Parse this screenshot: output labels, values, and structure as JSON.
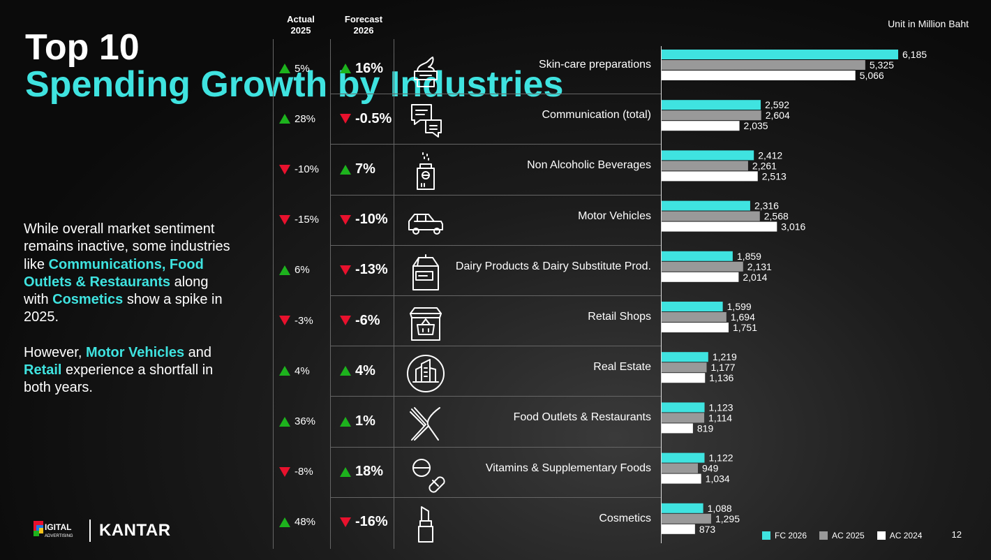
{
  "title": {
    "line1": "Top 10",
    "line2": "Spending Growth by Industries"
  },
  "description": {
    "p1": [
      {
        "text": "While overall market sentiment remains inactive, some industries like ",
        "hl": false
      },
      {
        "text": "Communications, Food Outlets & Restaurants",
        "hl": true
      },
      {
        "text": " along with ",
        "hl": false
      },
      {
        "text": "Cosmetics",
        "hl": true
      },
      {
        "text": " show a spike in 2025.",
        "hl": false
      }
    ],
    "p2": [
      {
        "text": "However, ",
        "hl": false
      },
      {
        "text": "Motor Vehicles",
        "hl": true
      },
      {
        "text": " and ",
        "hl": false
      },
      {
        "text": "Retail",
        "hl": true
      },
      {
        "text": " experience a shortfall in both years.",
        "hl": false
      }
    ]
  },
  "headers": {
    "actual_line1": "Actual",
    "actual_line2": "2025",
    "forecast_line1": "Forecast",
    "forecast_line2": "2026"
  },
  "unit": "Unit in Million Baht",
  "colors": {
    "fc2026": "#3fe3e0",
    "ac2025": "#999999",
    "ac2024": "#ffffff",
    "up": "#1db31d",
    "down": "#e8112d",
    "accent": "#3fe3e0"
  },
  "chart_data": {
    "type": "bar",
    "orientation": "horizontal",
    "categories": [
      "Skin-care preparations",
      "Communication (total)",
      "Non Alcoholic Beverages",
      "Motor Vehicles",
      "Dairy Products & Dairy Substitute Prod.",
      "Retail Shops",
      "Real Estate",
      "Food Outlets & Restaurants",
      "Vitamins & Supplementary Foods",
      "Cosmetics"
    ],
    "series": [
      {
        "name": "FC 2026",
        "values": [
          6185,
          2592,
          2412,
          2316,
          1859,
          1599,
          1219,
          1123,
          1122,
          1088
        ],
        "labels": [
          "6,185",
          "2,592",
          "2,412",
          "2,316",
          "1,859",
          "1,599",
          "1,219",
          "1,123",
          "1,122",
          "1,088"
        ]
      },
      {
        "name": "AC 2025",
        "values": [
          5325,
          2604,
          2261,
          2568,
          2131,
          1694,
          1177,
          1114,
          949,
          1295
        ],
        "labels": [
          "5,325",
          "2,604",
          "2,261",
          "2,568",
          "2,131",
          "1,694",
          "1,177",
          "1,114",
          "949",
          "1,295"
        ]
      },
      {
        "name": "AC 2024",
        "values": [
          5066,
          2035,
          2513,
          3016,
          2014,
          1751,
          1136,
          819,
          1034,
          873
        ],
        "labels": [
          "5,066",
          "2,035",
          "2,513",
          "3,016",
          "2,014",
          "1,751",
          "1,136",
          "819",
          "1,034",
          "873"
        ]
      }
    ],
    "actual_2025_growth": [
      {
        "text": "5%",
        "dir": "up"
      },
      {
        "text": "28%",
        "dir": "up"
      },
      {
        "text": "-10%",
        "dir": "down"
      },
      {
        "text": "-15%",
        "dir": "down"
      },
      {
        "text": "6%",
        "dir": "up"
      },
      {
        "text": "-3%",
        "dir": "down"
      },
      {
        "text": "4%",
        "dir": "up"
      },
      {
        "text": "36%",
        "dir": "up"
      },
      {
        "text": "-8%",
        "dir": "down"
      },
      {
        "text": "48%",
        "dir": "up"
      }
    ],
    "forecast_2026_growth": [
      {
        "text": "16%",
        "dir": "up"
      },
      {
        "text": "-0.5%",
        "dir": "down"
      },
      {
        "text": "7%",
        "dir": "up"
      },
      {
        "text": "-10%",
        "dir": "down"
      },
      {
        "text": "-13%",
        "dir": "down"
      },
      {
        "text": "-6%",
        "dir": "down"
      },
      {
        "text": "4%",
        "dir": "up"
      },
      {
        "text": "1%",
        "dir": "up"
      },
      {
        "text": "18%",
        "dir": "up"
      },
      {
        "text": "-16%",
        "dir": "down"
      }
    ],
    "icons": [
      "cream-jar-icon",
      "chat-bubbles-icon",
      "spray-bottle-icon",
      "car-icon",
      "milk-carton-icon",
      "shop-basket-icon",
      "buildings-icon",
      "fork-knife-icon",
      "pills-icon",
      "lipstick-icon"
    ],
    "legend_position": "bottom-right"
  },
  "footer": {
    "page": "12",
    "brand": "KANTAR",
    "daat_text": "IGITAL",
    "daat_sub": "ADVERTISING"
  }
}
